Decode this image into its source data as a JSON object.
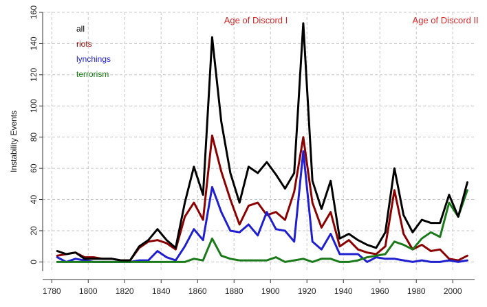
{
  "chart_data": {
    "type": "line",
    "title": "",
    "xlabel": "",
    "ylabel": "Instability Events",
    "xlim": [
      1775,
      2012
    ],
    "ylim": [
      -6,
      160
    ],
    "xticks": [
      1780,
      1800,
      1820,
      1840,
      1860,
      1880,
      1900,
      1920,
      1940,
      1960,
      1980,
      2000
    ],
    "yticks": [
      0,
      20,
      40,
      60,
      80,
      100,
      120,
      140,
      160
    ],
    "grid": true,
    "legend": {
      "position": "top-left",
      "entries": [
        "all",
        "riots",
        "lynchings",
        "terrorism"
      ]
    },
    "annotations": [
      {
        "text": "Age of Discord I",
        "x": 1892,
        "y": 153
      },
      {
        "text": "Age of Discord II",
        "x": 1996,
        "y": 153
      }
    ],
    "x": [
      1783,
      1788,
      1793,
      1798,
      1803,
      1808,
      1813,
      1818,
      1823,
      1828,
      1833,
      1838,
      1843,
      1848,
      1853,
      1858,
      1863,
      1868,
      1873,
      1878,
      1883,
      1888,
      1893,
      1898,
      1903,
      1908,
      1913,
      1918,
      1923,
      1928,
      1933,
      1938,
      1943,
      1948,
      1953,
      1958,
      1963,
      1968,
      1973,
      1978,
      1983,
      1988,
      1993,
      1998,
      2003,
      2008
    ],
    "series": [
      {
        "name": "all",
        "color": "#000000",
        "values": [
          7,
          5,
          6,
          2,
          2,
          2,
          2,
          1,
          1,
          10,
          14,
          21,
          14,
          9,
          38,
          61,
          43,
          144,
          90,
          57,
          38,
          61,
          57,
          64,
          56,
          47,
          57,
          153,
          52,
          34,
          52,
          15,
          18,
          14,
          11,
          9,
          19,
          60,
          30,
          19,
          27,
          25,
          25,
          43,
          29,
          51
        ]
      },
      {
        "name": "riots",
        "color": "#8b0000",
        "values": [
          4,
          5,
          6,
          3,
          3,
          2,
          2,
          1,
          1,
          9,
          13,
          14,
          12,
          8,
          29,
          38,
          27,
          81,
          58,
          40,
          24,
          36,
          38,
          30,
          32,
          27,
          45,
          80,
          38,
          22,
          32,
          10,
          14,
          8,
          6,
          5,
          10,
          46,
          18,
          8,
          11,
          7,
          8,
          2,
          1,
          4
        ]
      },
      {
        "name": "lynchings",
        "color": "#1f1fcf",
        "values": [
          3,
          0,
          2,
          1,
          0,
          0,
          0,
          0,
          0,
          1,
          1,
          7,
          3,
          1,
          10,
          21,
          14,
          48,
          32,
          20,
          19,
          24,
          17,
          32,
          21,
          20,
          13,
          71,
          13,
          8,
          18,
          5,
          5,
          5,
          0,
          3,
          2,
          2,
          1,
          0,
          1,
          0,
          0,
          1,
          0,
          1
        ]
      },
      {
        "name": "terrorism",
        "color": "#1a7a1a",
        "values": [
          0,
          0,
          0,
          0,
          0,
          0,
          0,
          0,
          0,
          0,
          0,
          0,
          0,
          0,
          0,
          2,
          1,
          15,
          4,
          2,
          1,
          1,
          1,
          1,
          3,
          0,
          1,
          2,
          0,
          2,
          2,
          0,
          0,
          1,
          3,
          4,
          5,
          13,
          11,
          8,
          15,
          19,
          16,
          38,
          29,
          46
        ]
      }
    ]
  }
}
